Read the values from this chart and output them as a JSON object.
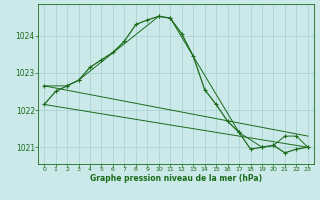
{
  "title": "Graphe pression niveau de la mer (hPa)",
  "bg_color": "#cce9e9",
  "grid_color": "#aad4d4",
  "line_color": "#1a6b1a",
  "xlim": [
    -0.5,
    23.5
  ],
  "ylim": [
    1020.55,
    1024.85
  ],
  "yticks": [
    1021,
    1022,
    1023,
    1024
  ],
  "xticks": [
    0,
    1,
    2,
    3,
    4,
    5,
    6,
    7,
    8,
    9,
    10,
    11,
    12,
    13,
    14,
    15,
    16,
    17,
    18,
    19,
    20,
    21,
    22,
    23
  ],
  "line1_x": [
    0,
    1,
    2,
    3,
    4,
    5,
    6,
    7,
    8,
    9,
    10,
    11,
    12,
    13,
    14,
    15,
    16,
    17,
    18,
    19,
    20,
    21,
    22,
    23
  ],
  "line1_y": [
    1022.15,
    1022.5,
    1022.65,
    1022.8,
    1023.15,
    1023.35,
    1023.55,
    1023.85,
    1024.3,
    1024.42,
    1024.52,
    1024.47,
    1024.05,
    1023.45,
    1022.55,
    1022.15,
    1021.7,
    1021.4,
    1020.95,
    1021.0,
    1021.05,
    1020.85,
    1020.95,
    1021.0
  ],
  "line2_x": [
    0,
    2,
    3,
    10,
    11,
    17,
    19,
    20,
    21,
    22,
    23
  ],
  "line2_y": [
    1022.65,
    1022.65,
    1022.8,
    1024.52,
    1024.47,
    1021.4,
    1021.0,
    1021.05,
    1021.3,
    1021.3,
    1021.0
  ],
  "line3_x": [
    0,
    23
  ],
  "line3_y": [
    1022.15,
    1021.0
  ],
  "line4_x": [
    0,
    23
  ],
  "line4_y": [
    1022.65,
    1021.3
  ],
  "marker": "+"
}
